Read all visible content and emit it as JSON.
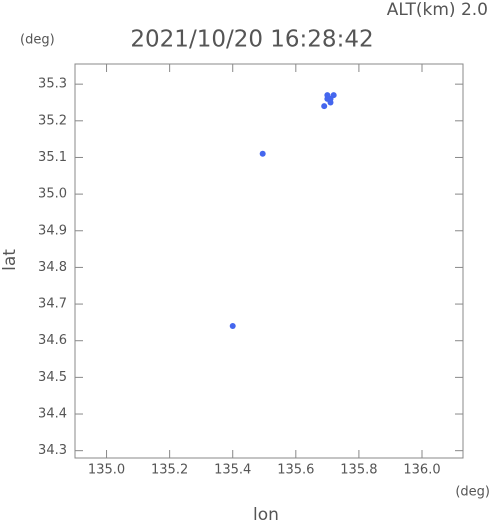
{
  "chart_data": {
    "type": "scatter",
    "title": "2021/10/20 16:28:42",
    "annotation": "ALT(km) 2.0",
    "y_unit": "(deg)",
    "x_unit": "(deg)",
    "xlabel": "lon",
    "ylabel": "lat",
    "color": "#4466ee",
    "x": [
      135.69,
      135.7,
      135.71,
      135.72,
      135.7,
      135.71,
      135.495,
      135.4
    ],
    "y": [
      35.24,
      35.26,
      35.25,
      35.27,
      35.27,
      35.26,
      35.11,
      34.64
    ],
    "xlim": [
      134.9,
      136.13
    ],
    "ylim": [
      34.28,
      35.355
    ],
    "xticks": [
      {
        "value": 135,
        "label": "135.0"
      },
      135.2,
      135.4,
      135.6,
      135.8,
      {
        "value": 136,
        "label": "136.0"
      }
    ],
    "yticks": [
      34.3,
      34.4,
      34.5,
      34.6,
      34.7,
      34.8,
      34.9,
      {
        "value": 35,
        "label": "35.0"
      },
      35.1,
      35.2,
      35.3
    ]
  }
}
